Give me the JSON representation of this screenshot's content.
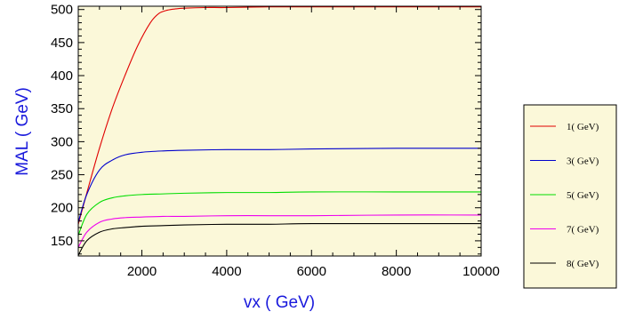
{
  "chart_data": {
    "type": "line",
    "xlabel": "vx ( GeV)",
    "ylabel": "MAL ( GeV)",
    "xlim": [
      500,
      10000
    ],
    "ylim": [
      127,
      505
    ],
    "xticks": [
      2000,
      4000,
      6000,
      8000,
      10000
    ],
    "xtick_labels": [
      "2000",
      "4000",
      "6000",
      "8000",
      "10000"
    ],
    "yticks": [
      150,
      200,
      250,
      300,
      350,
      400,
      450,
      500
    ],
    "ytick_labels": [
      "150",
      "200",
      "250",
      "300",
      "350",
      "400",
      "450",
      "500"
    ],
    "grid": false,
    "plot_background": "#fbf8d9",
    "legend_position": "right",
    "series": [
      {
        "name": "1( GeV)",
        "color": "#e00000",
        "x": [
          500,
          700,
          1000,
          1300,
          1600,
          1900,
          2200,
          2400,
          2600,
          2800,
          3000,
          3500,
          4000,
          5000,
          6000,
          8000,
          10000
        ],
        "y": [
          175,
          222,
          290,
          350,
          400,
          445,
          480,
          494,
          499,
          501,
          502,
          503,
          503,
          504,
          504,
          504,
          504
        ]
      },
      {
        "name": "3( GeV)",
        "color": "#0000cc",
        "x": [
          500,
          700,
          1000,
          1300,
          1600,
          2000,
          2500,
          3000,
          4000,
          5000,
          6000,
          8000,
          10000
        ],
        "y": [
          178,
          220,
          257,
          272,
          280,
          284,
          286,
          287,
          288,
          288,
          289,
          290,
          290
        ]
      },
      {
        "name": "5( GeV)",
        "color": "#00dd00",
        "x": [
          500,
          700,
          1000,
          1300,
          1600,
          2000,
          2500,
          3000,
          4000,
          5000,
          6000,
          8000,
          10000
        ],
        "y": [
          158,
          190,
          208,
          215,
          218,
          220,
          221,
          222,
          223,
          223,
          224,
          224,
          224
        ]
      },
      {
        "name": "7( GeV)",
        "color": "#ee00ee",
        "x": [
          500,
          700,
          1000,
          1300,
          1600,
          2000,
          2500,
          3000,
          4000,
          5000,
          6000,
          8000,
          10000
        ],
        "y": [
          140,
          163,
          178,
          183,
          185,
          186,
          187,
          187,
          188,
          188,
          188,
          189,
          189
        ]
      },
      {
        "name": "8( GeV)",
        "color": "#000000",
        "x": [
          500,
          700,
          1000,
          1300,
          1600,
          2000,
          2500,
          3000,
          4000,
          5000,
          6000,
          8000,
          10000
        ],
        "y": [
          128,
          150,
          163,
          168,
          170,
          172,
          173,
          174,
          175,
          175,
          176,
          176,
          176
        ]
      }
    ]
  }
}
